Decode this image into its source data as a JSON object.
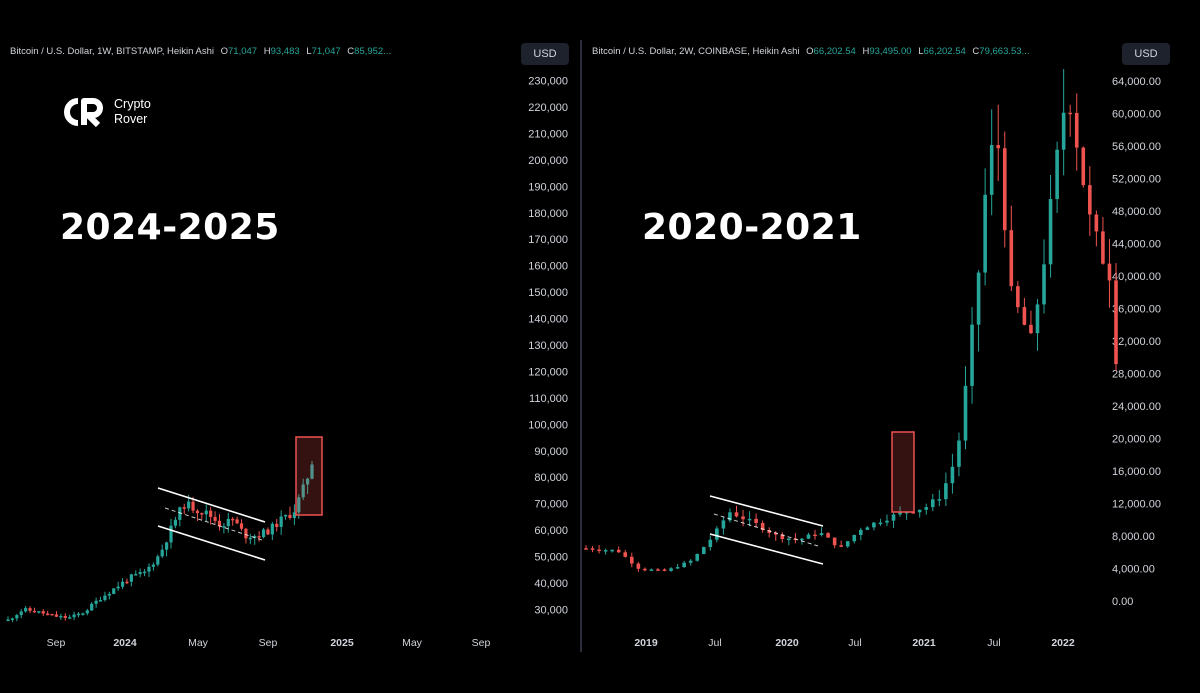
{
  "chart_data": [
    {
      "type": "candlestick",
      "title": "2024-2025",
      "header": {
        "symbol": "Bitcoin / U.S. Dollar, 1W, BITSTAMP, Heikin Ashi",
        "o_label": "O",
        "o": "71,047",
        "h_label": "H",
        "h": "93,483",
        "l_label": "L",
        "l": "71,047",
        "c_label": "C",
        "c": "85,952..."
      },
      "currency_label": "USD",
      "y_ticks": [
        "230,000",
        "220,000",
        "210,000",
        "200,000",
        "190,000",
        "180,000",
        "170,000",
        "160,000",
        "150,000",
        "140,000",
        "130,000",
        "120,000",
        "110,000",
        "100,000",
        "90,000",
        "80,000",
        "70,000",
        "60,000",
        "50,000",
        "40,000",
        "30,000"
      ],
      "ylim": [
        25000,
        235000
      ],
      "x_ticks": [
        "Sep",
        "2024",
        "May",
        "Sep",
        "2025",
        "May",
        "Sep"
      ],
      "approx_close_path": [
        [
          0,
          26000
        ],
        [
          5,
          30000
        ],
        [
          10,
          29000
        ],
        [
          15,
          27500
        ],
        [
          20,
          26800
        ],
        [
          25,
          29000
        ],
        [
          30,
          34000
        ],
        [
          35,
          38000
        ],
        [
          40,
          42000
        ],
        [
          45,
          44000
        ],
        [
          50,
          51000
        ],
        [
          55,
          64000
        ],
        [
          58,
          70000
        ],
        [
          62,
          68000
        ],
        [
          66,
          66000
        ],
        [
          70,
          62000
        ],
        [
          74,
          64000
        ],
        [
          78,
          58000
        ],
        [
          82,
          58000
        ],
        [
          86,
          60000
        ],
        [
          90,
          64000
        ],
        [
          94,
          67000
        ],
        [
          98,
          78000
        ],
        [
          100,
          86000
        ]
      ],
      "annotations": [
        "descending channel (consolidation)",
        "breakout box"
      ]
    },
    {
      "type": "candlestick",
      "title": "2020-2021",
      "header": {
        "symbol": "Bitcoin / U.S. Dollar, 2W, COINBASE, Heikin Ashi",
        "o_label": "O",
        "o": "66,202.54",
        "h_label": "H",
        "h": "93,495.00",
        "l_label": "L",
        "l": "66,202.54",
        "c_label": "C",
        "c": "79,663.53..."
      },
      "currency_label": "USD",
      "y_ticks": [
        "64,000.00",
        "60,000.00",
        "56,000.00",
        "52,000.00",
        "48,000.00",
        "44,000.00",
        "40,000.00",
        "36,000.00",
        "32,000.00",
        "28,000.00",
        "24,000.00",
        "20,000.00",
        "16,000.00",
        "12,000.00",
        "8,000.00",
        "4,000.00",
        "0.00"
      ],
      "ylim": [
        -1500,
        67000
      ],
      "x_ticks": [
        "2019",
        "Jul",
        "2020",
        "Jul",
        "2021",
        "Jul",
        "2022"
      ],
      "approx_close_path": [
        [
          0,
          6500
        ],
        [
          6,
          6200
        ],
        [
          10,
          4000
        ],
        [
          15,
          3700
        ],
        [
          20,
          5000
        ],
        [
          24,
          8000
        ],
        [
          27,
          11000
        ],
        [
          32,
          9500
        ],
        [
          36,
          8000
        ],
        [
          40,
          7500
        ],
        [
          44,
          8500
        ],
        [
          48,
          6500
        ],
        [
          52,
          9000
        ],
        [
          56,
          10000
        ],
        [
          60,
          11000
        ],
        [
          64,
          11500
        ],
        [
          67,
          13000
        ],
        [
          70,
          18000
        ],
        [
          72,
          28000
        ],
        [
          74,
          40000
        ],
        [
          76,
          55000
        ],
        [
          78,
          56000
        ],
        [
          80,
          38000
        ],
        [
          82,
          35000
        ],
        [
          84,
          32000
        ],
        [
          86,
          40000
        ],
        [
          88,
          50000
        ],
        [
          90,
          60000
        ],
        [
          91,
          63000
        ],
        [
          93,
          55000
        ],
        [
          95,
          47000
        ],
        [
          97,
          43000
        ],
        [
          99,
          40000
        ],
        [
          100,
          30000
        ]
      ],
      "annotations": [
        "descending channel (consolidation)",
        "breakout box"
      ]
    }
  ],
  "colors": {
    "up": "#26a69a",
    "down": "#ef5350",
    "box": "#ef5350",
    "channel": "#ffffff",
    "axis_text": "#d1d4dc"
  },
  "logo": {
    "line1": "Crypto",
    "line2": "Rover"
  }
}
